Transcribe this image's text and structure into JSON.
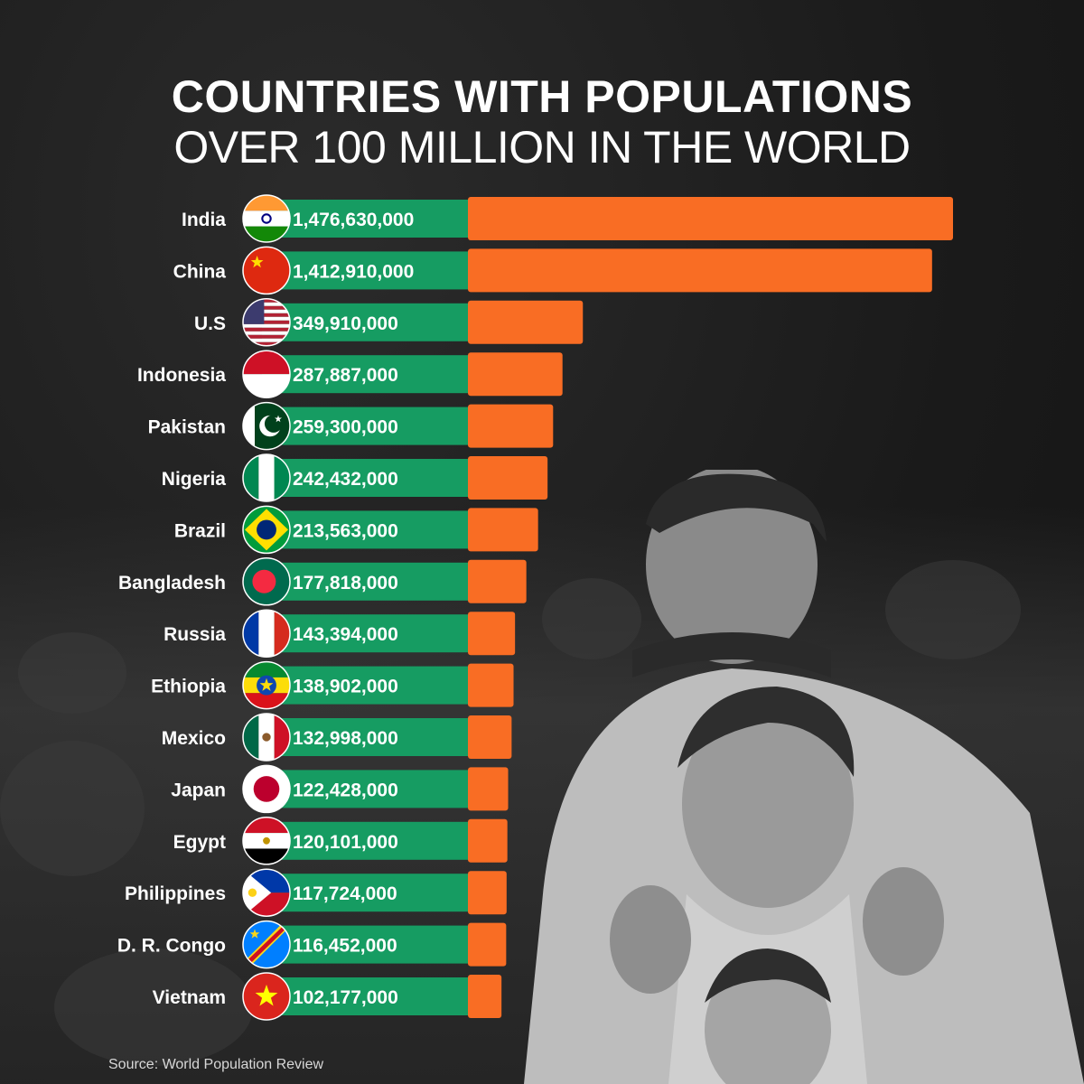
{
  "title_line1": "COUNTRIES WITH POPULATIONS",
  "title_line2": "OVER 100 MILLION IN THE WORLD",
  "source": "Source: World Population Review",
  "colors": {
    "bar": "#f96d24",
    "label_band": "#169c62",
    "text": "#ffffff",
    "background": "#1c1c1c"
  },
  "chart_data": {
    "type": "bar",
    "orientation": "horizontal",
    "categories": [
      "India",
      "China",
      "U.S",
      "Indonesia",
      "Pakistan",
      "Nigeria",
      "Brazil",
      "Bangladesh",
      "Russia",
      "Ethiopia",
      "Mexico",
      "Japan",
      "Egypt",
      "Philippines",
      "D. R. Congo",
      "Vietnam"
    ],
    "values": [
      1476630000,
      1412910000,
      349910000,
      287887000,
      259300000,
      242432000,
      213563000,
      177818000,
      143394000,
      138902000,
      132998000,
      122428000,
      120101000,
      117724000,
      116452000,
      102177000
    ],
    "value_labels": [
      "1,476,630,000",
      "1,412,910,000",
      "349,910,000",
      "287,887,000",
      "259,300,000",
      "242,432,000",
      "213,563,000",
      "177,818,000",
      "143,394,000",
      "138,902,000",
      "132,998,000",
      "122,428,000",
      "120,101,000",
      "117,724,000",
      "116,452,000",
      "102,177,000"
    ],
    "flag_icons": [
      "flag-india-icon",
      "flag-china-icon",
      "flag-us-icon",
      "flag-indonesia-icon",
      "flag-pakistan-icon",
      "flag-nigeria-icon",
      "flag-brazil-icon",
      "flag-bangladesh-icon",
      "flag-russia-icon",
      "flag-ethiopia-icon",
      "flag-mexico-icon",
      "flag-japan-icon",
      "flag-egypt-icon",
      "flag-philippines-icon",
      "flag-drcongo-icon",
      "flag-vietnam-icon"
    ],
    "title": "COUNTRIES WITH POPULATIONS OVER 100 MILLION IN THE WORLD",
    "xlabel": "",
    "ylabel": "",
    "xlim": [
      0,
      1476630000
    ],
    "grid": false,
    "legend": "none"
  }
}
